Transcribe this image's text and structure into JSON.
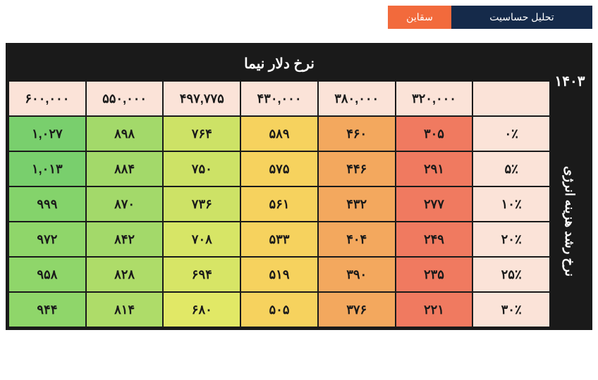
{
  "tabs": {
    "primary": {
      "label": "تحلیل حساسیت",
      "bg": "#152a4a"
    },
    "accent": {
      "label": "سقاین",
      "bg": "#f26a3c"
    }
  },
  "corner_label": "۱۴۰۳",
  "top_axis_label": "نرخ دلار نیما",
  "side_axis_label": "نرخ رشد هزینه انرژی",
  "col_head_bg": "#fbe3d8",
  "row_head_bg": "#fbe3d8",
  "columns": [
    "۳۲۰,۰۰۰",
    "۳۸۰,۰۰۰",
    "۴۳۰,۰۰۰",
    "۴۹۷,۷۷۵",
    "۵۵۰,۰۰۰",
    "۶۰۰,۰۰۰"
  ],
  "rows": [
    {
      "label": "۰٪",
      "cells": [
        "۳۰۵",
        "۴۶۰",
        "۵۸۹",
        "۷۶۴",
        "۸۹۸",
        "۱,۰۲۷"
      ]
    },
    {
      "label": "۵٪",
      "cells": [
        "۲۹۱",
        "۴۴۶",
        "۵۷۵",
        "۷۵۰",
        "۸۸۴",
        "۱,۰۱۳"
      ]
    },
    {
      "label": "۱۰٪",
      "cells": [
        "۲۷۷",
        "۴۳۲",
        "۵۶۱",
        "۷۳۶",
        "۸۷۰",
        "۹۹۹"
      ]
    },
    {
      "label": "۲۰٪",
      "cells": [
        "۲۴۹",
        "۴۰۴",
        "۵۳۳",
        "۷۰۸",
        "۸۴۲",
        "۹۷۲"
      ]
    },
    {
      "label": "۲۵٪",
      "cells": [
        "۲۳۵",
        "۳۹۰",
        "۵۱۹",
        "۶۹۴",
        "۸۲۸",
        "۹۵۸"
      ]
    },
    {
      "label": "۳۰٪",
      "cells": [
        "۲۲۱",
        "۳۷۶",
        "۵۰۵",
        "۶۸۰",
        "۸۱۴",
        "۹۴۴"
      ]
    }
  ],
  "heat_colors": [
    [
      "#f07a60",
      "#f3a85e",
      "#f6d25e",
      "#cde266",
      "#a3d96a",
      "#79cf6d"
    ],
    [
      "#f07a60",
      "#f3a85e",
      "#f6d25e",
      "#cde266",
      "#a3d96a",
      "#79cf6d"
    ],
    [
      "#f07a60",
      "#f3a85e",
      "#f6d25e",
      "#cde266",
      "#a3d96a",
      "#84d36b"
    ],
    [
      "#f07a60",
      "#f3a85e",
      "#f6d25e",
      "#d7e566",
      "#a3d96a",
      "#8fd66a"
    ],
    [
      "#f07a60",
      "#f3a85e",
      "#f6d25e",
      "#d7e566",
      "#aedc69",
      "#8fd66a"
    ],
    [
      "#f07a60",
      "#f3a85e",
      "#f6d25e",
      "#e1e866",
      "#aedc69",
      "#8fd66a"
    ]
  ],
  "table": {
    "border_color": "#1a1a1a",
    "header_bg": "#1a1a1a",
    "header_fg": "#ffffff",
    "cell_font_size": 18
  }
}
